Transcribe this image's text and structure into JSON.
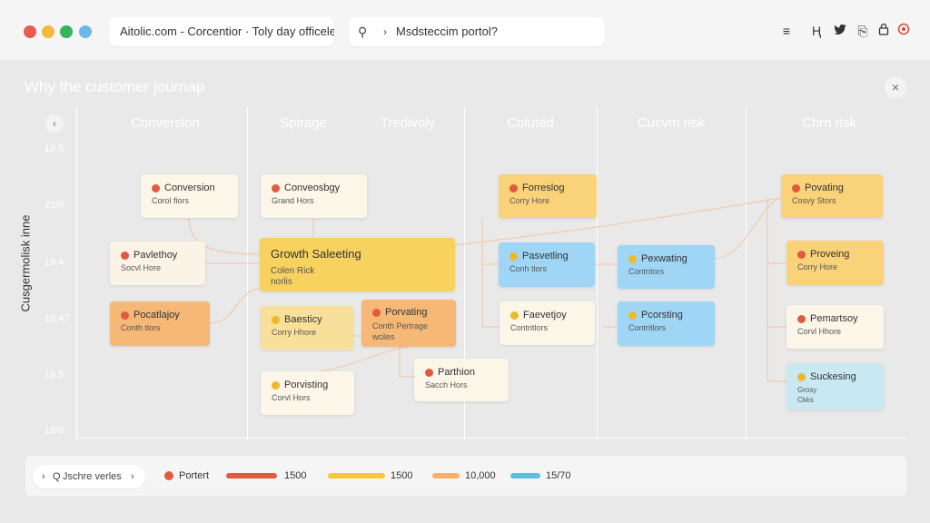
{
  "window": {
    "controls": [
      {
        "name": "close",
        "color": "#e85b4f"
      },
      {
        "name": "minimize",
        "color": "#f5b83d"
      },
      {
        "name": "maximize",
        "color": "#34b55b"
      },
      {
        "name": "extra",
        "color": "#6db8e8"
      }
    ],
    "title": "Aitolic.com - Corcentior · Toly day officelects"
  },
  "search": {
    "icon": "search-icon",
    "chevron": "›",
    "text": "Msdsteccim portol?"
  },
  "toolbar": {
    "icons": [
      {
        "name": "menu-icon",
        "glyph": "≡"
      },
      {
        "name": "text-icon",
        "glyph": "Ⱨ"
      },
      {
        "name": "bird-icon",
        "glyph": "🐦"
      },
      {
        "name": "clipboard-icon",
        "glyph": "⎘"
      },
      {
        "name": "lock-icon",
        "glyph": "⌂"
      },
      {
        "name": "record-icon",
        "glyph": "◉"
      }
    ]
  },
  "page": {
    "title": "Why the customer journap",
    "close_glyph": "×",
    "back_glyph": "‹"
  },
  "columns": [
    "Conversion",
    "Spirage",
    "Tredivoly",
    "Coluted",
    "Cucvm risk",
    "Chrn risk"
  ],
  "y_axis": {
    "label": "Cusgermolisk inne",
    "ticks": [
      "19.5",
      "23/9",
      "19.4",
      "19.47",
      "19.5",
      "18/0"
    ]
  },
  "cards": [
    {
      "name": "card-conversion",
      "title": "Conversion",
      "sub": "Corol fiors",
      "bg": "#fbf6e8",
      "icon": "#e05a3f"
    },
    {
      "name": "card-pavlethoy",
      "title": "Pavlethoy",
      "sub": "Socvl Hore",
      "bg": "#fbf3e6",
      "icon": "#e05a3f"
    },
    {
      "name": "card-pocatlajoy",
      "title": "Pocatlajoy",
      "sub": "Conth tlors",
      "bg": "#f5b877",
      "icon": "#e05a3f"
    },
    {
      "name": "card-conveosbgy",
      "title": "Conveosbgy",
      "sub": "Grand Hors",
      "bg": "#fbf6e8",
      "icon": "#e05a3f"
    },
    {
      "name": "card-growth",
      "title": "Growth Saleeting",
      "sub": "Colen Rick\nnorlis",
      "bg": "#f7d25e",
      "icon": ""
    },
    {
      "name": "card-baesticy",
      "title": "Baesticy",
      "sub": "Corry Hhore",
      "bg": "#f9e09a",
      "icon": "#f0b72a"
    },
    {
      "name": "card-porvating",
      "title": "Porvating",
      "sub": "Conth Pertrage\nwciles",
      "bg": "#f5b877",
      "icon": "#e05a3f"
    },
    {
      "name": "card-porvisting",
      "title": "Porvisting",
      "sub": "Corvl Hors",
      "bg": "#fbf6e8",
      "icon": "#f0b72a"
    },
    {
      "name": "card-parthion",
      "title": "Parthion",
      "sub": "Sacch Hors",
      "bg": "#fbf6e8",
      "icon": "#e05a3f"
    },
    {
      "name": "card-forreslog",
      "title": "Forreslog",
      "sub": "Corry Hore",
      "bg": "#f9d27a",
      "icon": "#e05a3f"
    },
    {
      "name": "card-pasvetling-1",
      "title": "Pasvetling",
      "sub": "Conh tlors",
      "bg": "#9fd6f5",
      "icon": "#f0b72a"
    },
    {
      "name": "card-faevetjoy",
      "title": "Faevetjoy",
      "sub": "Contritlors",
      "bg": "#fbf6e8",
      "icon": "#f0b72a"
    },
    {
      "name": "card-pexwating",
      "title": "Pexwating",
      "sub": "Contritors",
      "bg": "#9fd6f5",
      "icon": "#f0b72a"
    },
    {
      "name": "card-pcorsting",
      "title": "Pcorsting",
      "sub": "Contritlors",
      "bg": "#9fd6f5",
      "icon": "#f0b72a"
    },
    {
      "name": "card-povating",
      "title": "Povating",
      "sub": "Cosvy Stors",
      "bg": "#f9d27a",
      "icon": "#e05a3f"
    },
    {
      "name": "card-proveing",
      "title": "Proveing",
      "sub": "Corry Hore",
      "bg": "#f9d27a",
      "icon": "#e05a3f"
    },
    {
      "name": "card-pemartsoy",
      "title": "Pemartsoy",
      "sub": "Corvl Hhore",
      "bg": "#fbf6e8",
      "icon": "#e05a3f"
    },
    {
      "name": "card-suckesing",
      "title": "Suckesing",
      "sub": "Grosy\nCkks",
      "bg": "#c8e8f2",
      "icon": "#f0b72a"
    }
  ],
  "legend": {
    "search": {
      "left": "›",
      "q": "Q",
      "text": "Jschre verles",
      "right": "›"
    },
    "items": [
      {
        "type": "dot",
        "label": "Portert",
        "color": "#e25a43"
      },
      {
        "type": "bar",
        "label": "1500",
        "color": "#e25a43"
      },
      {
        "type": "bar",
        "label": "1500",
        "color": "#f5c83a"
      },
      {
        "type": "bar",
        "label": "10,000",
        "color": "#f5b06a"
      },
      {
        "type": "bar",
        "label": "15/70",
        "color": "#5cc0dc"
      }
    ]
  }
}
